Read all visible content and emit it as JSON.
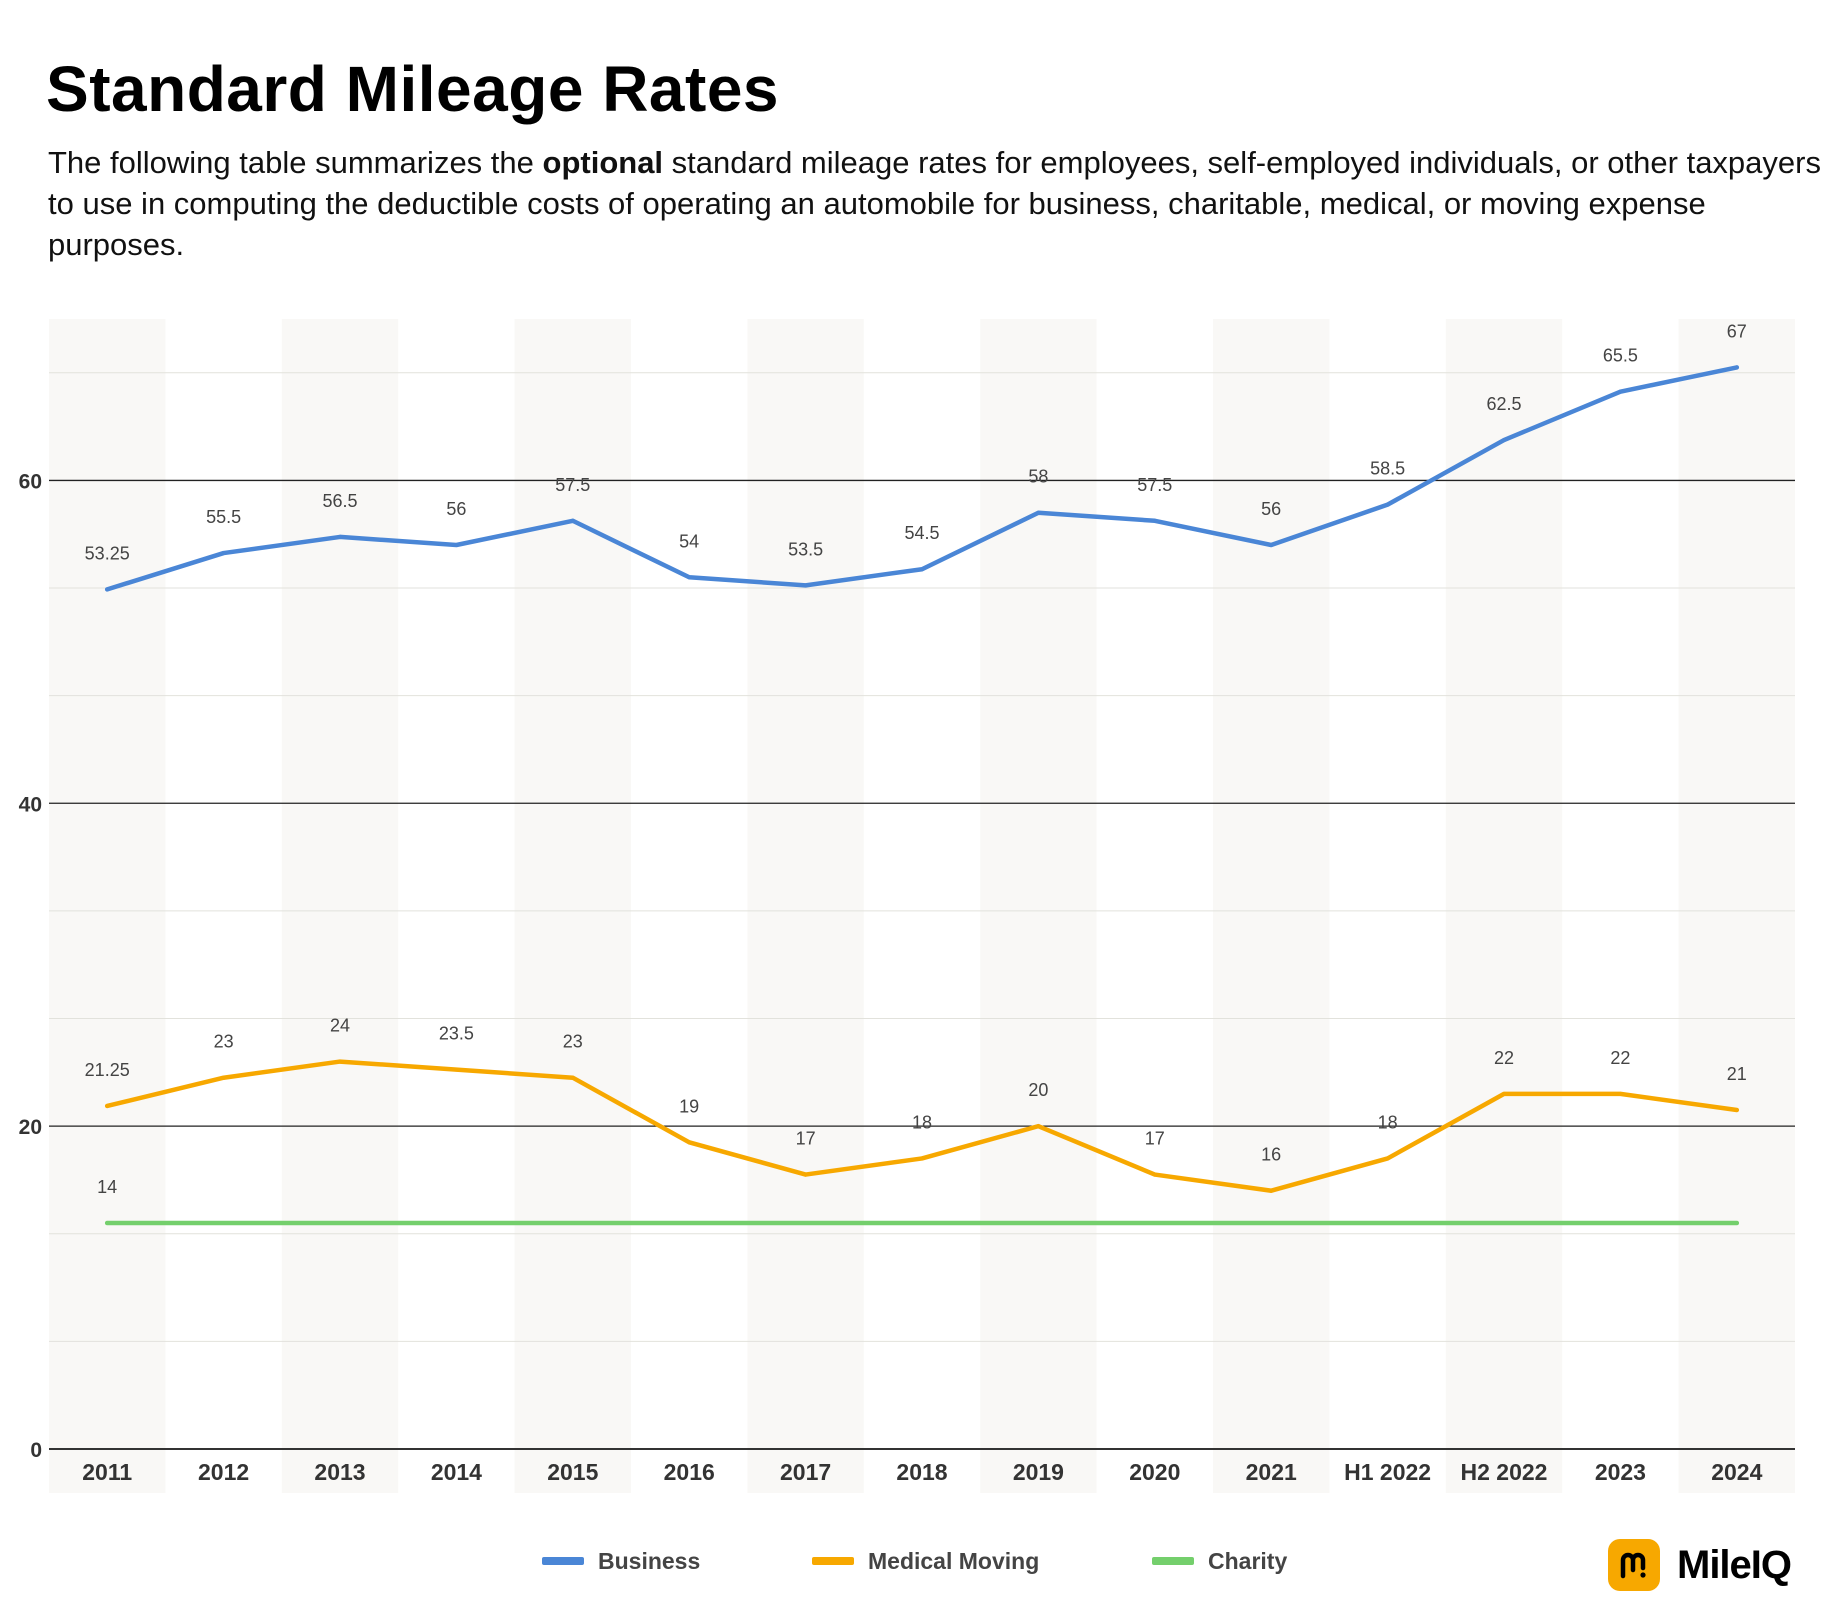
{
  "header": {
    "title": "Standard Mileage Rates",
    "desc_before": "The following table summarizes the ",
    "desc_bold": "optional",
    "desc_after": " standard mileage rates for employees, self-employed individuals, or other taxpayers to use in computing the deductible costs of operating an automobile for business, charitable, medical, or moving expense purposes."
  },
  "chart_data": {
    "type": "line",
    "title": "",
    "xlabel": "",
    "ylabel": "",
    "categories": [
      "2011",
      "2012",
      "2013",
      "2014",
      "2015",
      "2016",
      "2017",
      "2018",
      "2019",
      "2020",
      "2021",
      "H1 2022",
      "H2 2022",
      "2023",
      "2024"
    ],
    "ylim": [
      0,
      70
    ],
    "yticks": [
      0,
      20,
      40,
      60
    ],
    "grid": true,
    "legend_position": "bottom",
    "series": [
      {
        "name": "Business",
        "color": "#4a86d6",
        "values": [
          53.25,
          55.5,
          56.5,
          56,
          57.5,
          54,
          53.5,
          54.5,
          58,
          57.5,
          56,
          58.5,
          62.5,
          65.5,
          67
        ],
        "labels": [
          "53.25",
          "55.5",
          "56.5",
          "56",
          "57.5",
          "54",
          "53.5",
          "54.5",
          "58",
          "57.5",
          "56",
          "58.5",
          "62.5",
          "65.5",
          "67"
        ]
      },
      {
        "name": "Medical Moving",
        "color": "#f7a800",
        "values": [
          21.25,
          23,
          24,
          23.5,
          23,
          19,
          17,
          18,
          20,
          17,
          16,
          18,
          22,
          22,
          21
        ],
        "labels": [
          "21.25",
          "23",
          "24",
          "23.5",
          "23",
          "19",
          "17",
          "18",
          "20",
          "17",
          "16",
          "18",
          "22",
          "22",
          "21"
        ]
      },
      {
        "name": "Charity",
        "color": "#74cf6c",
        "values": [
          14,
          14,
          14,
          14,
          14,
          14,
          14,
          14,
          14,
          14,
          14,
          14,
          14,
          14,
          14
        ],
        "labels": [
          "14"
        ]
      }
    ]
  },
  "logo": {
    "text": "MileIQ",
    "icon": "mileiq-m-icon",
    "color": "#f7a800"
  }
}
